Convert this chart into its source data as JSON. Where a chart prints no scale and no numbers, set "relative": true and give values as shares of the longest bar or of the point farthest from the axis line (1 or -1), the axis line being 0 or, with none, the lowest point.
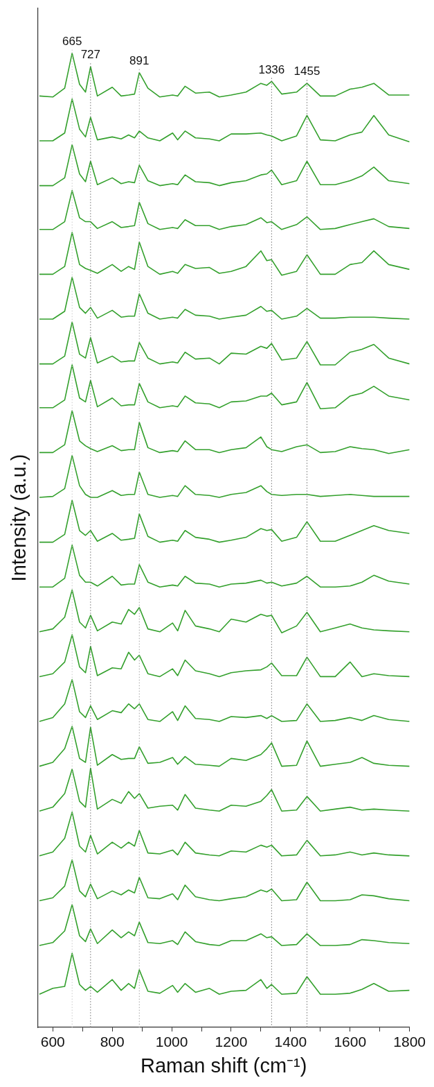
{
  "chart_data": {
    "type": "line",
    "xlabel": "Raman shift (cm⁻¹)",
    "ylabel": "Intensity (a.u.)",
    "relative": true,
    "tick_labels": "x",
    "xlim": [
      550,
      1800
    ],
    "xticks": [
      600,
      {
        "value": 700,
        "label": null
      },
      800,
      {
        "value": 900,
        "label": null
      },
      1000,
      {
        "value": 1100,
        "label": null
      },
      1200,
      {
        "value": 1300,
        "label": null
      },
      1400,
      {
        "value": 1500,
        "label": null
      },
      1600,
      {
        "value": 1700,
        "label": null
      },
      1800
    ],
    "ref_lines": [
      {
        "axis": "x",
        "value": 665,
        "label": "665",
        "color": "#c8c8c8",
        "line_style": "dotted"
      },
      {
        "axis": "x",
        "value": 727,
        "label": "727",
        "color": "#707070",
        "line_style": "dotted"
      },
      {
        "axis": "x",
        "value": 891,
        "label": "891",
        "color": "#a0a0a0",
        "line_style": "dotted"
      },
      {
        "axis": "x",
        "value": 1336,
        "label": "1336",
        "color": "#707070",
        "line_style": "dotted"
      },
      {
        "axis": "x",
        "value": 1455,
        "label": "1455",
        "color": "#707070",
        "line_style": "dotted"
      }
    ],
    "x": [
      555,
      600,
      640,
      665,
      690,
      710,
      727,
      750,
      800,
      830,
      855,
      875,
      891,
      920,
      960,
      1003,
      1020,
      1045,
      1080,
      1127,
      1160,
      1200,
      1250,
      1300,
      1320,
      1336,
      1370,
      1420,
      1455,
      1500,
      1550,
      1600,
      1640,
      1680,
      1730,
      1800
    ],
    "series": [
      {
        "color": "#33a02c",
        "values": [
          0.956,
          0.955,
          0.964,
          1.0,
          0.968,
          0.96,
          0.986,
          0.956,
          0.965,
          0.956,
          0.957,
          0.958,
          0.98,
          0.964,
          0.955,
          0.957,
          0.956,
          0.966,
          0.959,
          0.96,
          0.955,
          0.957,
          0.96,
          0.969,
          0.967,
          0.971,
          0.958,
          0.96,
          0.969,
          0.956,
          0.956,
          0.963,
          0.965,
          0.969,
          0.957,
          0.957
        ]
      },
      {
        "color": "#33a02c",
        "values": [
          0.91,
          0.91,
          0.918,
          0.953,
          0.922,
          0.914,
          0.934,
          0.911,
          0.914,
          0.912,
          0.916,
          0.913,
          0.92,
          0.913,
          0.91,
          0.918,
          0.911,
          0.92,
          0.913,
          0.912,
          0.91,
          0.917,
          0.917,
          0.918,
          0.916,
          0.915,
          0.91,
          0.915,
          0.936,
          0.911,
          0.91,
          0.916,
          0.919,
          0.936,
          0.916,
          0.909
        ]
      },
      {
        "color": "#33a02c",
        "values": [
          0.864,
          0.864,
          0.872,
          0.906,
          0.876,
          0.868,
          0.889,
          0.865,
          0.872,
          0.866,
          0.868,
          0.867,
          0.885,
          0.869,
          0.864,
          0.866,
          0.865,
          0.875,
          0.868,
          0.867,
          0.864,
          0.867,
          0.869,
          0.875,
          0.876,
          0.88,
          0.865,
          0.869,
          0.889,
          0.865,
          0.865,
          0.869,
          0.874,
          0.883,
          0.869,
          0.866
        ]
      },
      {
        "color": "#33a02c",
        "values": [
          0.819,
          0.819,
          0.827,
          0.859,
          0.831,
          0.827,
          0.827,
          0.82,
          0.827,
          0.821,
          0.822,
          0.823,
          0.847,
          0.825,
          0.819,
          0.821,
          0.82,
          0.829,
          0.823,
          0.823,
          0.819,
          0.822,
          0.824,
          0.831,
          0.826,
          0.827,
          0.819,
          0.824,
          0.832,
          0.819,
          0.82,
          0.824,
          0.827,
          0.83,
          0.822,
          0.82
        ]
      },
      {
        "color": "#33a02c",
        "values": [
          0.773,
          0.773,
          0.781,
          0.816,
          0.783,
          0.779,
          0.777,
          0.774,
          0.783,
          0.776,
          0.781,
          0.778,
          0.806,
          0.781,
          0.773,
          0.776,
          0.774,
          0.783,
          0.779,
          0.78,
          0.774,
          0.776,
          0.781,
          0.797,
          0.787,
          0.788,
          0.772,
          0.776,
          0.793,
          0.773,
          0.773,
          0.783,
          0.785,
          0.797,
          0.783,
          0.778
        ]
      },
      {
        "color": "#33a02c",
        "values": [
          0.727,
          0.727,
          0.735,
          0.77,
          0.739,
          0.733,
          0.739,
          0.728,
          0.736,
          0.729,
          0.73,
          0.73,
          0.753,
          0.733,
          0.727,
          0.729,
          0.728,
          0.737,
          0.731,
          0.73,
          0.727,
          0.729,
          0.731,
          0.74,
          0.735,
          0.736,
          0.727,
          0.73,
          0.738,
          0.728,
          0.728,
          0.729,
          0.729,
          0.729,
          0.728,
          0.727
        ]
      },
      {
        "color": "#33a02c",
        "values": [
          0.681,
          0.681,
          0.689,
          0.724,
          0.691,
          0.687,
          0.708,
          0.682,
          0.689,
          0.683,
          0.684,
          0.684,
          0.703,
          0.687,
          0.681,
          0.683,
          0.682,
          0.693,
          0.686,
          0.687,
          0.681,
          0.692,
          0.691,
          0.699,
          0.697,
          0.702,
          0.685,
          0.687,
          0.704,
          0.68,
          0.68,
          0.693,
          0.696,
          0.701,
          0.687,
          0.681
        ]
      },
      {
        "color": "#33a02c",
        "values": [
          0.636,
          0.636,
          0.644,
          0.68,
          0.646,
          0.642,
          0.664,
          0.637,
          0.646,
          0.638,
          0.639,
          0.639,
          0.661,
          0.642,
          0.636,
          0.638,
          0.637,
          0.648,
          0.641,
          0.64,
          0.636,
          0.642,
          0.643,
          0.648,
          0.648,
          0.651,
          0.639,
          0.642,
          0.662,
          0.635,
          0.636,
          0.648,
          0.651,
          0.658,
          0.648,
          0.644
        ]
      },
      {
        "color": "#33a02c",
        "values": [
          0.59,
          0.59,
          0.598,
          0.633,
          0.602,
          0.597,
          0.594,
          0.591,
          0.597,
          0.592,
          0.593,
          0.593,
          0.621,
          0.595,
          0.59,
          0.592,
          0.591,
          0.602,
          0.593,
          0.593,
          0.59,
          0.593,
          0.595,
          0.606,
          0.596,
          0.593,
          0.591,
          0.596,
          0.598,
          0.59,
          0.591,
          0.596,
          0.594,
          0.593,
          0.589,
          0.593
        ]
      },
      {
        "color": "#33a02c",
        "values": [
          0.544,
          0.545,
          0.553,
          0.587,
          0.556,
          0.547,
          0.544,
          0.544,
          0.551,
          0.546,
          0.547,
          0.547,
          0.57,
          0.547,
          0.544,
          0.546,
          0.545,
          0.556,
          0.547,
          0.546,
          0.544,
          0.547,
          0.549,
          0.556,
          0.55,
          0.547,
          0.546,
          0.547,
          0.547,
          0.545,
          0.546,
          0.547,
          0.546,
          0.545,
          0.545,
          0.545
        ]
      },
      {
        "color": "#33a02c",
        "values": [
          0.498,
          0.498,
          0.506,
          0.541,
          0.51,
          0.505,
          0.51,
          0.499,
          0.507,
          0.5,
          0.501,
          0.502,
          0.527,
          0.504,
          0.498,
          0.5,
          0.499,
          0.51,
          0.503,
          0.501,
          0.498,
          0.5,
          0.503,
          0.512,
          0.51,
          0.511,
          0.499,
          0.503,
          0.519,
          0.499,
          0.499,
          0.505,
          0.51,
          0.515,
          0.51,
          0.507
        ]
      },
      {
        "color": "#33a02c",
        "values": [
          0.452,
          0.452,
          0.461,
          0.495,
          0.464,
          0.457,
          0.457,
          0.453,
          0.463,
          0.454,
          0.455,
          0.455,
          0.475,
          0.457,
          0.452,
          0.454,
          0.453,
          0.463,
          0.456,
          0.455,
          0.452,
          0.455,
          0.456,
          0.459,
          0.456,
          0.457,
          0.453,
          0.456,
          0.463,
          0.452,
          0.452,
          0.453,
          0.457,
          0.464,
          0.458,
          0.455
        ]
      },
      {
        "color": "#33a02c",
        "values": [
          0.406,
          0.409,
          0.421,
          0.449,
          0.416,
          0.41,
          0.423,
          0.407,
          0.416,
          0.414,
          0.429,
          0.424,
          0.431,
          0.409,
          0.406,
          0.415,
          0.407,
          0.428,
          0.412,
          0.409,
          0.406,
          0.419,
          0.416,
          0.424,
          0.422,
          0.423,
          0.405,
          0.412,
          0.426,
          0.406,
          0.41,
          0.414,
          0.41,
          0.408,
          0.407,
          0.406
        ]
      },
      {
        "color": "#33a02c",
        "values": [
          0.36,
          0.363,
          0.375,
          0.403,
          0.37,
          0.364,
          0.391,
          0.361,
          0.369,
          0.368,
          0.385,
          0.377,
          0.382,
          0.363,
          0.36,
          0.368,
          0.361,
          0.377,
          0.366,
          0.363,
          0.36,
          0.364,
          0.366,
          0.367,
          0.37,
          0.374,
          0.361,
          0.361,
          0.38,
          0.36,
          0.36,
          0.375,
          0.36,
          0.363,
          0.361,
          0.36
        ]
      },
      {
        "color": "#33a02c",
        "values": [
          0.314,
          0.318,
          0.332,
          0.357,
          0.324,
          0.318,
          0.33,
          0.316,
          0.325,
          0.323,
          0.332,
          0.327,
          0.332,
          0.316,
          0.314,
          0.324,
          0.315,
          0.33,
          0.317,
          0.316,
          0.314,
          0.319,
          0.318,
          0.32,
          0.317,
          0.32,
          0.314,
          0.315,
          0.332,
          0.314,
          0.315,
          0.318,
          0.315,
          0.32,
          0.316,
          0.314
        ]
      },
      {
        "color": "#33a02c",
        "values": [
          0.268,
          0.272,
          0.286,
          0.309,
          0.276,
          0.272,
          0.308,
          0.269,
          0.28,
          0.275,
          0.276,
          0.276,
          0.288,
          0.271,
          0.272,
          0.277,
          0.27,
          0.278,
          0.27,
          0.269,
          0.268,
          0.276,
          0.274,
          0.28,
          0.286,
          0.292,
          0.268,
          0.269,
          0.294,
          0.268,
          0.27,
          0.272,
          0.277,
          0.271,
          0.269,
          0.268
        ]
      },
      {
        "color": "#33a02c",
        "values": [
          0.222,
          0.226,
          0.24,
          0.265,
          0.232,
          0.226,
          0.266,
          0.224,
          0.234,
          0.23,
          0.242,
          0.235,
          0.24,
          0.225,
          0.227,
          0.228,
          0.223,
          0.239,
          0.225,
          0.223,
          0.222,
          0.228,
          0.227,
          0.232,
          0.238,
          0.244,
          0.222,
          0.223,
          0.237,
          0.222,
          0.224,
          0.226,
          0.223,
          0.224,
          0.223,
          0.222
        ]
      },
      {
        "color": "#33a02c",
        "values": [
          0.176,
          0.18,
          0.194,
          0.221,
          0.186,
          0.18,
          0.197,
          0.178,
          0.19,
          0.184,
          0.19,
          0.186,
          0.202,
          0.179,
          0.178,
          0.182,
          0.177,
          0.19,
          0.179,
          0.177,
          0.176,
          0.181,
          0.18,
          0.187,
          0.185,
          0.187,
          0.176,
          0.177,
          0.192,
          0.176,
          0.177,
          0.18,
          0.177,
          0.179,
          0.177,
          0.176
        ]
      },
      {
        "color": "#33a02c",
        "values": [
          0.13,
          0.133,
          0.145,
          0.172,
          0.14,
          0.134,
          0.147,
          0.132,
          0.14,
          0.136,
          0.141,
          0.138,
          0.154,
          0.133,
          0.132,
          0.137,
          0.131,
          0.146,
          0.134,
          0.131,
          0.13,
          0.132,
          0.134,
          0.141,
          0.139,
          0.142,
          0.13,
          0.131,
          0.149,
          0.13,
          0.13,
          0.131,
          0.136,
          0.135,
          0.132,
          0.13
        ]
      },
      {
        "color": "#33a02c",
        "values": [
          0.084,
          0.087,
          0.099,
          0.126,
          0.094,
          0.088,
          0.101,
          0.086,
          0.1,
          0.092,
          0.098,
          0.094,
          0.108,
          0.087,
          0.086,
          0.089,
          0.085,
          0.098,
          0.088,
          0.085,
          0.084,
          0.089,
          0.089,
          0.096,
          0.092,
          0.093,
          0.084,
          0.085,
          0.096,
          0.084,
          0.084,
          0.085,
          0.09,
          0.089,
          0.087,
          0.086
        ]
      },
      {
        "color": "#33a02c",
        "values": [
          0.034,
          0.04,
          0.042,
          0.076,
          0.044,
          0.038,
          0.042,
          0.036,
          0.049,
          0.038,
          0.045,
          0.04,
          0.059,
          0.037,
          0.035,
          0.043,
          0.036,
          0.045,
          0.036,
          0.04,
          0.034,
          0.037,
          0.038,
          0.049,
          0.04,
          0.044,
          0.034,
          0.035,
          0.052,
          0.034,
          0.034,
          0.035,
          0.039,
          0.045,
          0.037,
          0.038
        ]
      }
    ]
  }
}
